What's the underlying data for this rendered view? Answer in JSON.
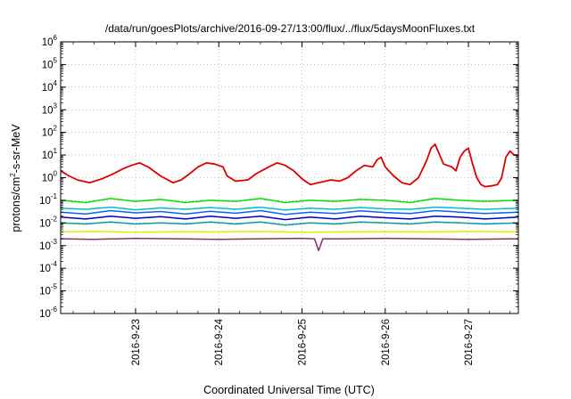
{
  "chart_data": {
    "type": "line",
    "title": "/data/run/goesPlots/archive/2016-09-27/13:00/flux/../flux/5daysMoonFluxes.txt",
    "xlabel": "Coordinated Universal Time (UTC)",
    "ylabel": "protons/cm2-s-sr-MeV",
    "ylabel_parts": {
      "pre": "protons/cm",
      "sup": "2",
      "post": "-s-sr-MeV"
    },
    "y_scale": "log",
    "ylim": [
      1e-06,
      1000000.0
    ],
    "y_ticks": [
      {
        "base": "10",
        "exp": "-6"
      },
      {
        "base": "10",
        "exp": "-5"
      },
      {
        "base": "10",
        "exp": "-4"
      },
      {
        "base": "10",
        "exp": "-3"
      },
      {
        "base": "10",
        "exp": "-2"
      },
      {
        "base": "10",
        "exp": "-1"
      },
      {
        "base": "10",
        "exp": "0"
      },
      {
        "base": "10",
        "exp": "1"
      },
      {
        "base": "10",
        "exp": "2"
      },
      {
        "base": "10",
        "exp": "3"
      },
      {
        "base": "10",
        "exp": "4"
      },
      {
        "base": "10",
        "exp": "5"
      },
      {
        "base": "10",
        "exp": "6"
      }
    ],
    "x_ticks": [
      "2016-9-23",
      "2016-9-24",
      "2016-9-25",
      "2016-9-26",
      "2016-9-27"
    ],
    "xlim_days": [
      22.1,
      27.6
    ],
    "grid": true,
    "legend": "none",
    "series": [
      {
        "color": "#e00000",
        "x": [
          22.1,
          22.2,
          22.3,
          22.45,
          22.6,
          22.75,
          22.85,
          22.95,
          23.05,
          23.15,
          23.3,
          23.45,
          23.55,
          23.65,
          23.75,
          23.85,
          23.95,
          24.05,
          24.1,
          24.2,
          24.35,
          24.45,
          24.6,
          24.7,
          24.8,
          24.9,
          25.0,
          25.1,
          25.2,
          25.35,
          25.45,
          25.55,
          25.65,
          25.75,
          25.85,
          25.9,
          25.95,
          26.0,
          26.1,
          26.2,
          26.3,
          26.4,
          26.5,
          26.55,
          26.6,
          26.7,
          26.8,
          26.85,
          26.9,
          26.95,
          27.0,
          27.05,
          27.1,
          27.15,
          27.2,
          27.3,
          27.35,
          27.4,
          27.45,
          27.5,
          27.55,
          27.6
        ],
        "y": [
          2.0,
          1.2,
          0.8,
          0.6,
          0.9,
          1.6,
          2.5,
          3.5,
          4.5,
          3.0,
          1.2,
          0.6,
          0.8,
          1.5,
          3.0,
          4.5,
          4.0,
          3.0,
          1.2,
          0.7,
          0.8,
          1.5,
          3.0,
          4.5,
          3.5,
          2.0,
          0.9,
          0.5,
          0.6,
          0.8,
          0.7,
          1.0,
          2.0,
          3.5,
          3.0,
          6.0,
          8.0,
          3.0,
          1.2,
          0.6,
          0.5,
          1.0,
          6.0,
          20.0,
          30.0,
          4.0,
          3.0,
          2.0,
          8.0,
          15.0,
          20.0,
          4.0,
          1.0,
          0.5,
          0.4,
          0.45,
          0.5,
          1.0,
          8.0,
          15.0,
          10.0,
          10.0
        ]
      },
      {
        "color": "#00e000",
        "x": [
          22.1,
          22.4,
          22.7,
          23.0,
          23.3,
          23.6,
          23.9,
          24.2,
          24.5,
          24.8,
          25.1,
          25.4,
          25.7,
          26.0,
          26.3,
          26.6,
          26.9,
          27.2,
          27.6
        ],
        "y": [
          0.1,
          0.08,
          0.12,
          0.09,
          0.11,
          0.08,
          0.1,
          0.09,
          0.12,
          0.08,
          0.1,
          0.09,
          0.11,
          0.1,
          0.08,
          0.12,
          0.1,
          0.09,
          0.1
        ]
      },
      {
        "color": "#00c0c0",
        "x": [
          22.1,
          22.4,
          22.7,
          23.0,
          23.3,
          23.6,
          23.9,
          24.2,
          24.5,
          24.8,
          25.1,
          25.4,
          25.7,
          26.0,
          26.3,
          26.6,
          26.9,
          27.2,
          27.6
        ],
        "y": [
          0.045,
          0.04,
          0.05,
          0.038,
          0.046,
          0.04,
          0.048,
          0.04,
          0.05,
          0.037,
          0.045,
          0.04,
          0.048,
          0.042,
          0.04,
          0.05,
          0.045,
          0.04,
          0.045
        ]
      },
      {
        "color": "#1060ff",
        "x": [
          22.1,
          22.4,
          22.7,
          23.0,
          23.3,
          23.6,
          23.9,
          24.2,
          24.5,
          24.8,
          25.1,
          25.4,
          25.7,
          26.0,
          26.3,
          26.6,
          26.9,
          27.2,
          27.6
        ],
        "y": [
          0.03,
          0.025,
          0.035,
          0.028,
          0.032,
          0.025,
          0.033,
          0.027,
          0.035,
          0.024,
          0.03,
          0.026,
          0.034,
          0.029,
          0.026,
          0.035,
          0.03,
          0.026,
          0.03
        ]
      },
      {
        "color": "#0000c0",
        "x": [
          22.1,
          22.4,
          22.7,
          23.0,
          23.3,
          23.6,
          23.9,
          24.2,
          24.5,
          24.8,
          25.1,
          25.4,
          25.7,
          26.0,
          26.3,
          26.6,
          26.9,
          27.2,
          27.6
        ],
        "y": [
          0.018,
          0.015,
          0.02,
          0.016,
          0.019,
          0.015,
          0.02,
          0.016,
          0.02,
          0.014,
          0.018,
          0.015,
          0.02,
          0.017,
          0.015,
          0.02,
          0.018,
          0.015,
          0.018
        ]
      },
      {
        "color": "#00a0a0",
        "x": [
          22.1,
          22.4,
          22.7,
          23.0,
          23.3,
          23.6,
          23.9,
          24.2,
          24.5,
          24.8,
          25.1,
          25.4,
          25.7,
          26.0,
          26.3,
          26.6,
          26.9,
          27.2,
          27.6
        ],
        "y": [
          0.01,
          0.009,
          0.011,
          0.009,
          0.01,
          0.009,
          0.011,
          0.009,
          0.011,
          0.008,
          0.01,
          0.009,
          0.011,
          0.01,
          0.009,
          0.011,
          0.01,
          0.009,
          0.01
        ]
      },
      {
        "color": "#e8e800",
        "x": [
          22.1,
          22.5,
          23.0,
          23.5,
          24.0,
          24.5,
          25.0,
          25.5,
          26.0,
          26.5,
          27.0,
          27.6
        ],
        "y": [
          0.004,
          0.0042,
          0.0039,
          0.0041,
          0.004,
          0.0042,
          0.0039,
          0.004,
          0.0041,
          0.004,
          0.0042,
          0.004
        ]
      },
      {
        "color": "#8b2a6e",
        "x": [
          22.1,
          22.5,
          23.0,
          23.5,
          24.0,
          24.5,
          25.0,
          25.15,
          25.2,
          25.25,
          25.5,
          26.0,
          26.5,
          27.0,
          27.6
        ],
        "y": [
          0.002,
          0.0019,
          0.0021,
          0.002,
          0.0019,
          0.002,
          0.0021,
          0.002,
          0.0006,
          0.002,
          0.002,
          0.0021,
          0.002,
          0.0019,
          0.002
        ]
      }
    ]
  }
}
